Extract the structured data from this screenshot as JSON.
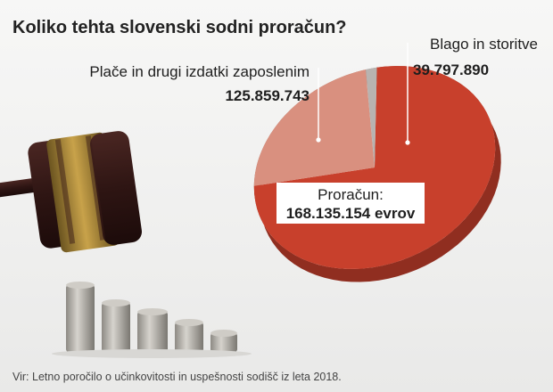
{
  "title": "Koliko tehta slovenski sodni proračun?",
  "source": "Vir: Letno poročilo o učinkovitosti in uspešnosti sodišč iz leta 2018.",
  "colors": {
    "salaries": "#c8402c",
    "goods": "#d9907f",
    "other": "#b8b3b0",
    "background": "#f4f4f3"
  },
  "chart_data": {
    "type": "pie",
    "title": "Koliko tehta slovenski sodni proračun?",
    "total_label": "Proračun:",
    "total_value": "168.135.154 evrov",
    "total": 168135154,
    "slices": [
      {
        "name": "Plače in drugi izdatki zaposlenim",
        "value": 125859743,
        "display": "125.859.743"
      },
      {
        "name": "Blago in storitve",
        "value": 39797890,
        "display": "39.797.890"
      },
      {
        "name": "",
        "value": 2477521,
        "display": ""
      }
    ]
  }
}
